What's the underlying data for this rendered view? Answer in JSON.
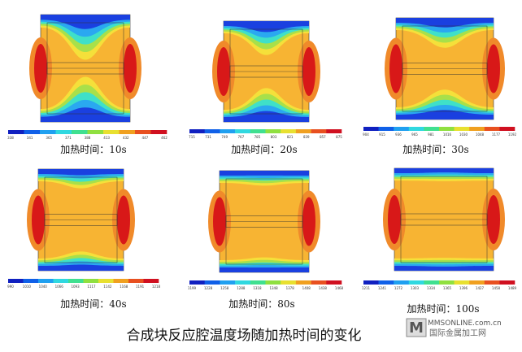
{
  "caption": "合成块反应腔温度场随加热时间的变化",
  "watermark": {
    "logo": "MMSONLINE.com.cn",
    "text": "国际金属加工网"
  },
  "panels": [
    {
      "caption": "加热时间：10s",
      "colorbar_labels": [
        "338",
        "341",
        "365",
        "371",
        "388",
        "413",
        "432",
        "447",
        "462"
      ]
    },
    {
      "caption": "加热时间：20s",
      "colorbar_labels": [
        "715",
        "731",
        "749",
        "767",
        "785",
        "803",
        "821",
        "839",
        "857",
        "875"
      ]
    },
    {
      "caption": "加热时间：30s",
      "colorbar_labels": [
        "904",
        "915",
        "936",
        "965",
        "981",
        "1016",
        "1030",
        "1048",
        "1177",
        "1192"
      ]
    },
    {
      "caption": "加热时间：40s",
      "colorbar_labels": [
        "990",
        "1010",
        "1040",
        "1066",
        "1093",
        "1117",
        "1142",
        "1168",
        "1191",
        "1218"
      ]
    },
    {
      "caption": "加热时间：80s",
      "colorbar_labels": [
        "1199",
        "1228",
        "1258",
        "1288",
        "1318",
        "1348",
        "1378",
        "1408",
        "1438",
        "1468"
      ]
    },
    {
      "caption": "加热时间：100s",
      "colorbar_labels": [
        "1211",
        "1241",
        "1272",
        "1303",
        "1334",
        "1365",
        "1396",
        "1427",
        "1458",
        "1489"
      ]
    }
  ]
}
